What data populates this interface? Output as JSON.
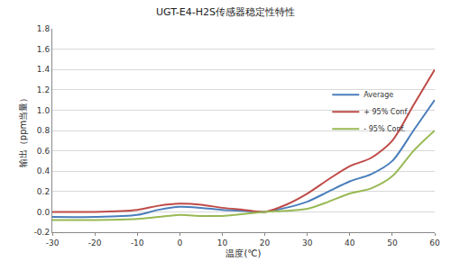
{
  "chart_data": {
    "type": "line",
    "title": "UGT-E4-H2S传感器稳定性特性",
    "x_label": "温度(℃)",
    "y_label": "输出（ppm当量）",
    "x": [
      -30,
      -20,
      -10,
      -5,
      0,
      5,
      10,
      15,
      20,
      25,
      30,
      35,
      40,
      45,
      50,
      55,
      60
    ],
    "series": [
      {
        "name": "Average",
        "color": "#4a7ebb",
        "values": [
          -0.05,
          -0.05,
          -0.03,
          0.02,
          0.05,
          0.04,
          0.02,
          0.01,
          0.0,
          0.04,
          0.1,
          0.2,
          0.3,
          0.37,
          0.5,
          0.8,
          1.1
        ]
      },
      {
        "name": "+ 95% Conf.",
        "color": "#be4b48",
        "values": [
          0.0,
          0.0,
          0.02,
          0.06,
          0.08,
          0.07,
          0.04,
          0.02,
          0.0,
          0.07,
          0.18,
          0.32,
          0.45,
          0.53,
          0.7,
          1.05,
          1.4
        ]
      },
      {
        "name": "- 95% Conf.",
        "color": "#98b954",
        "values": [
          -0.08,
          -0.08,
          -0.07,
          -0.05,
          -0.03,
          -0.04,
          -0.04,
          -0.02,
          0.0,
          0.01,
          0.03,
          0.1,
          0.18,
          0.23,
          0.35,
          0.6,
          0.8
        ]
      }
    ],
    "xlim": [
      -30,
      60
    ],
    "xticks": [
      -30,
      -20,
      -10,
      0,
      10,
      20,
      30,
      40,
      50,
      60
    ],
    "ylim": [
      -0.2,
      1.8
    ],
    "yticks": [
      -0.2,
      {
        "value": 0,
        "label": "0.0"
      },
      0.2,
      0.4,
      0.6,
      0.8,
      {
        "value": 1,
        "label": "1.0"
      },
      1.2,
      1.4,
      1.6,
      1.8
    ],
    "grid": true,
    "legend": "upper right"
  }
}
